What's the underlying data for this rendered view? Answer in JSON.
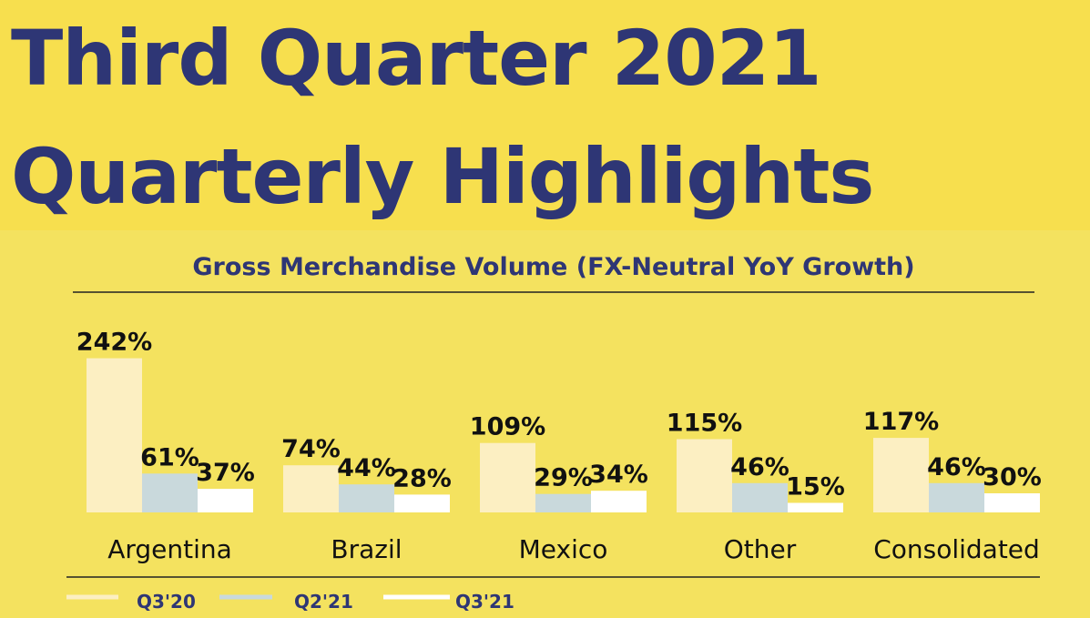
{
  "header": {
    "title_line1": "Third Quarter 2021",
    "title_line2": "Quarterly Highlights"
  },
  "colors": {
    "header_bg": "#f7df4e",
    "panel_bg": "#f4e25f",
    "title_text": "#2e3675",
    "series_q3_20": "#fcefc2",
    "series_q2_21": "#c9d9dc",
    "series_q3_21": "#ffffff"
  },
  "chart_data": {
    "type": "bar",
    "title": "Gross Merchandise Volume (FX-Neutral YoY Growth)",
    "categories": [
      "Argentina",
      "Brazil",
      "Mexico",
      "Other",
      "Consolidated"
    ],
    "series": [
      {
        "name": "Q3'20",
        "values": [
          242,
          74,
          109,
          115,
          117
        ],
        "labels": [
          "242%",
          "74%",
          "109%",
          "115%",
          "117%"
        ]
      },
      {
        "name": "Q2'21",
        "values": [
          61,
          44,
          29,
          46,
          46
        ],
        "labels": [
          "61%",
          "44%",
          "29%",
          "46%",
          "46%"
        ]
      },
      {
        "name": "Q3'21",
        "values": [
          37,
          28,
          34,
          15,
          30
        ],
        "labels": [
          "37%",
          "28%",
          "34%",
          "15%",
          "30%"
        ]
      }
    ],
    "unit": "%",
    "legend_position": "bottom-left",
    "grid": false
  }
}
